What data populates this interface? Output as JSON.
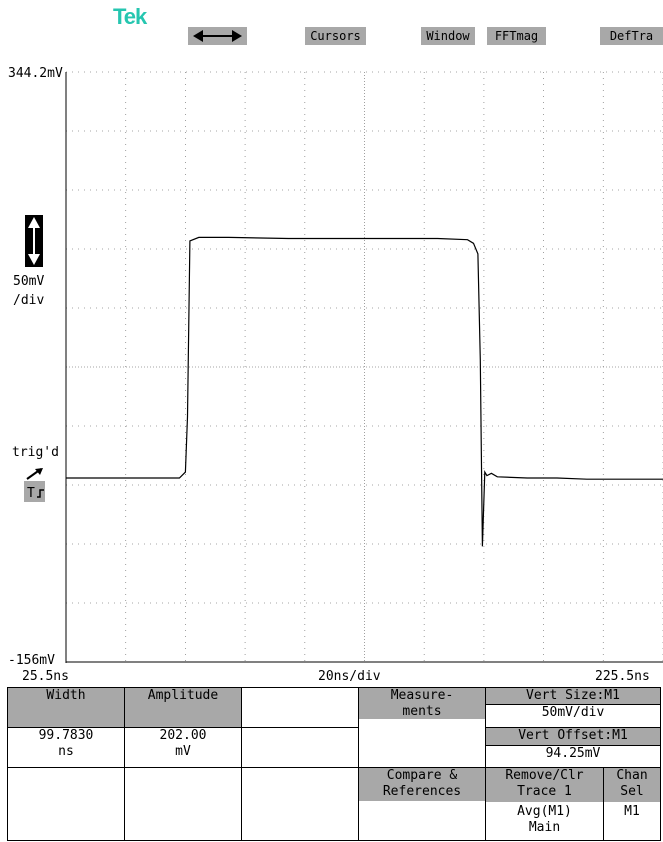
{
  "brand": "Tek",
  "menu": {
    "arrows_icon": "left-right-arrow-icon",
    "cursors": "Cursors",
    "window": "Window",
    "fftmag": "FFTmag",
    "deftra": "DefTra"
  },
  "axis": {
    "top_voltage": "344.2mV",
    "bottom_voltage": "-156mV",
    "vscale_value": "50mV",
    "vscale_unit": "/div",
    "trig_label": "trig'd",
    "trig_marker": "T",
    "x_start": "25.5ns",
    "x_scale": "20ns/div",
    "x_end": "225.5ns"
  },
  "chart_data": {
    "type": "line",
    "x_unit": "ns",
    "y_unit": "mV",
    "xlim": [
      25.5,
      225.5
    ],
    "ylim": [
      -156,
      344.2
    ],
    "grid": true,
    "series": [
      {
        "x": [
          25.5,
          55,
          63.5,
          65.5,
          66.2,
          67,
          70,
          80,
          100,
          120,
          140,
          150,
          160,
          162,
          163.5,
          164.3,
          165,
          165.8,
          166.5,
          168,
          170,
          180,
          190,
          200,
          210,
          225.5
        ],
        "y": [
          0,
          0,
          0,
          5,
          52,
          201,
          204,
          204,
          203,
          203,
          203,
          203,
          202,
          199,
          190,
          100,
          -58,
          5,
          2,
          4,
          1,
          0,
          0,
          -1,
          -1,
          -1
        ]
      }
    ]
  },
  "readouts": {
    "width_label": "Width",
    "amplitude_label": "Amplitude",
    "width_value": "99.7830",
    "width_unit": "ns",
    "amplitude_value": "202.00",
    "amplitude_unit": "mV"
  },
  "controls": {
    "measurements_1": "Measure-",
    "measurements_2": "ments",
    "vert_size_label": "Vert Size:M1",
    "vert_size_value": "50mV/div",
    "vert_offset_label": "Vert Offset:M1",
    "vert_offset_value": "94.25mV",
    "compare_1": "Compare &",
    "compare_2": "References",
    "remove_1": "Remove/Clr",
    "remove_2": "Trace 1",
    "remove_3": "Avg(M1)",
    "remove_4": "Main",
    "chan_1": "Chan",
    "chan_2": "Sel",
    "chan_3": "M1"
  }
}
